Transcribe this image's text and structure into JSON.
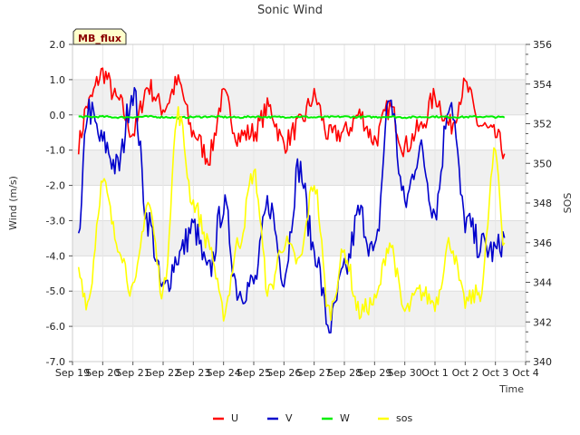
{
  "chart_data": {
    "type": "line",
    "title": "Sonic Wind",
    "badge": "MB_flux",
    "xlabel": "Time",
    "ylabel": "Wind (m/s)",
    "y2label": "SOS",
    "x_ticks": [
      "Sep 19",
      "Sep 20",
      "Sep 21",
      "Sep 22",
      "Sep 23",
      "Sep 24",
      "Sep 25",
      "Sep 26",
      "Sep 27",
      "Sep 28",
      "Sep 29",
      "Sep 30",
      "Oct 1",
      "Oct 2",
      "Oct 3",
      "Oct 4"
    ],
    "ylim": [
      -7.0,
      2.0
    ],
    "y_ticks": [
      "-7.0",
      "-6.0",
      "-5.0",
      "-4.0",
      "-3.0",
      "-2.0",
      "-1.0",
      "0.0",
      "1.0",
      "2.0"
    ],
    "y2lim": [
      340,
      356
    ],
    "y2_ticks": [
      "340",
      "342",
      "344",
      "346",
      "348",
      "350",
      "352",
      "354",
      "356"
    ],
    "x_day_offsets": [
      0.2,
      0.5,
      1.0,
      1.5,
      2.0,
      2.5,
      3.0,
      3.5,
      4.0,
      4.5,
      5.0,
      5.5,
      6.0,
      6.5,
      7.0,
      7.5,
      8.0,
      8.5,
      9.0,
      9.5,
      10.0,
      10.5,
      11.0,
      11.5,
      12.0,
      12.5,
      13.0,
      13.5,
      14.0,
      14.3
    ],
    "series": [
      {
        "name": "U",
        "axis": "left",
        "color": "#ff0000",
        "values": [
          -0.8,
          0.3,
          1.2,
          0.4,
          -0.5,
          0.8,
          0.2,
          0.9,
          -0.5,
          -1.2,
          0.5,
          -0.6,
          -0.5,
          0.2,
          -0.8,
          -0.3,
          0.5,
          -0.6,
          -0.5,
          0.0,
          -0.7,
          0.2,
          -0.9,
          -0.4,
          0.5,
          -0.3,
          0.8,
          -0.3,
          -0.6,
          -1.0
        ]
      },
      {
        "name": "V",
        "axis": "left",
        "color": "#0000cc",
        "values": [
          -3.7,
          0.2,
          -0.8,
          -1.5,
          0.7,
          -3.0,
          -5.0,
          -4.0,
          -3.2,
          -4.5,
          -2.6,
          -5.0,
          -4.8,
          -2.5,
          -4.5,
          -1.5,
          -3.8,
          -6.0,
          -4.5,
          -2.8,
          -4.0,
          0.5,
          -2.5,
          -1.0,
          -2.7,
          0.5,
          -3.0,
          -3.7,
          -3.9,
          -3.5
        ]
      },
      {
        "name": "W",
        "axis": "left",
        "color": "#00ee00",
        "values": [
          -0.05,
          -0.06,
          -0.05,
          -0.07,
          -0.06,
          -0.05,
          -0.06,
          -0.08,
          -0.06,
          -0.05,
          -0.06,
          -0.07,
          -0.05,
          -0.06,
          -0.06,
          -0.05,
          -0.07,
          -0.06,
          -0.05,
          -0.06,
          -0.06,
          -0.05,
          -0.07,
          -0.06,
          -0.05,
          -0.06,
          -0.06,
          -0.05,
          -0.06,
          -0.07
        ]
      },
      {
        "name": "sos",
        "axis": "right",
        "color": "#ffff00",
        "values": [
          344.5,
          343.0,
          349.0,
          346.0,
          343.5,
          348.0,
          343.5,
          352.5,
          348.0,
          346.0,
          342.5,
          346.0,
          349.5,
          343.5,
          346.0,
          345.0,
          349.0,
          342.5,
          345.5,
          342.5,
          343.0,
          346.0,
          342.5,
          343.5,
          343.0,
          346.0,
          343.0,
          343.5,
          350.5,
          346.0
        ]
      }
    ],
    "legend": [
      "U",
      "V",
      "W",
      "sos"
    ],
    "legend_position": "bottom-center",
    "grid": true
  }
}
